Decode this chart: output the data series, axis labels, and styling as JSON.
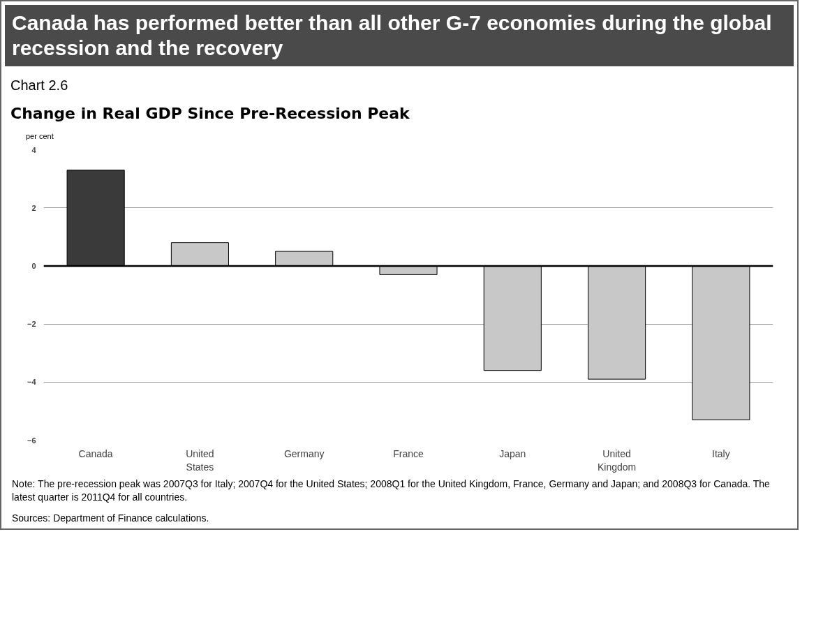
{
  "chart_data": {
    "type": "bar",
    "title": "Canada has performed better than all other G-7 economies during the global recession and the recovery",
    "subtitle": "Change in Real GDP Since Pre-Recession Peak",
    "ylabel": "per cent",
    "categories": [
      "Canada",
      "United States",
      "Germany",
      "France",
      "Japan",
      "United Kingdom",
      "Italy"
    ],
    "values": [
      3.3,
      0.8,
      0.5,
      -0.3,
      -3.6,
      -3.9,
      -5.3
    ],
    "colors": [
      "#3a3a3a",
      "#c8c8c8",
      "#c8c8c8",
      "#c8c8c8",
      "#c8c8c8",
      "#c8c8c8",
      "#c8c8c8"
    ],
    "ylim": [
      -6,
      4
    ],
    "yticks": [
      -6,
      -4,
      -2,
      0,
      2,
      4
    ],
    "grid": "y",
    "annotations": [
      "Chart 2.6",
      "Note: The pre-recession peak was 2007Q3 for Italy; 2007Q4 for the United States; 2008Q1 for the United Kingdom, France, Germany and Japan; and 2008Q3 for Canada. The latest quarter is 2011Q4 for all countries.",
      "Sources: Department of Finance calculations."
    ]
  }
}
